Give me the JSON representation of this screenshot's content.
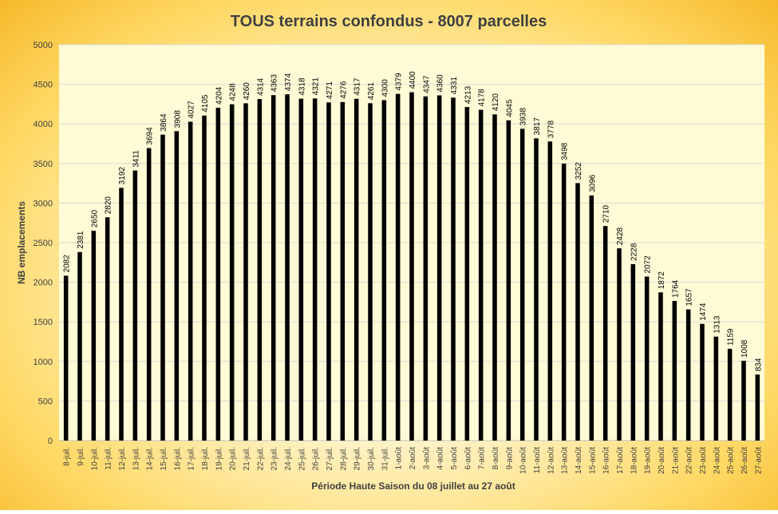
{
  "chart_data": {
    "type": "bar",
    "title": "TOUS terrains confondus - 8007 parcelles",
    "xlabel": "Période Haute Saison du 08  juillet au 27 août",
    "ylabel": "NB emplacements",
    "ylim": [
      0,
      5000
    ],
    "yticks": [
      0,
      500,
      1000,
      1500,
      2000,
      2500,
      3000,
      3500,
      4000,
      4500,
      5000
    ],
    "grid": true,
    "colors": {
      "bar": "#000000",
      "plot_bg": "#fffbd6",
      "grid": "#d9d9d9"
    },
    "categories": [
      "8-juil.",
      "9-juil.",
      "10-juil.",
      "11-juil.",
      "12-juil.",
      "13-juil.",
      "14-juil.",
      "15-juil.",
      "16-juil.",
      "17-juil.",
      "18-juil.",
      "19-juil.",
      "20-juil.",
      "21-juil.",
      "22-juil.",
      "23-juil.",
      "24-juil.",
      "25-juil.",
      "26-juil.",
      "27-juil.",
      "28-juil.",
      "29-juil.",
      "30-juil.",
      "31-juil.",
      "1-août",
      "2-août",
      "3-août",
      "4-août",
      "5-août",
      "6-août",
      "7-août",
      "8-août",
      "9-août",
      "10-août",
      "11-août",
      "12-août",
      "13-août",
      "14-août",
      "15-août",
      "16-août",
      "17-août",
      "18-août",
      "19-août",
      "20-août",
      "21-août",
      "22-août",
      "23-août",
      "24-août",
      "25-août",
      "26-août",
      "27-août"
    ],
    "values": [
      2082,
      2381,
      2650,
      2820,
      3192,
      3411,
      3694,
      3864,
      3908,
      4027,
      4105,
      4204,
      4248,
      4260,
      4314,
      4363,
      4374,
      4318,
      4321,
      4271,
      4276,
      4317,
      4261,
      4300,
      4379,
      4400,
      4347,
      4360,
      4331,
      4213,
      4178,
      4120,
      4045,
      3938,
      3817,
      3778,
      3498,
      3252,
      3096,
      2710,
      2428,
      2228,
      2072,
      1872,
      1764,
      1657,
      1474,
      1313,
      1159,
      1008,
      834
    ]
  }
}
